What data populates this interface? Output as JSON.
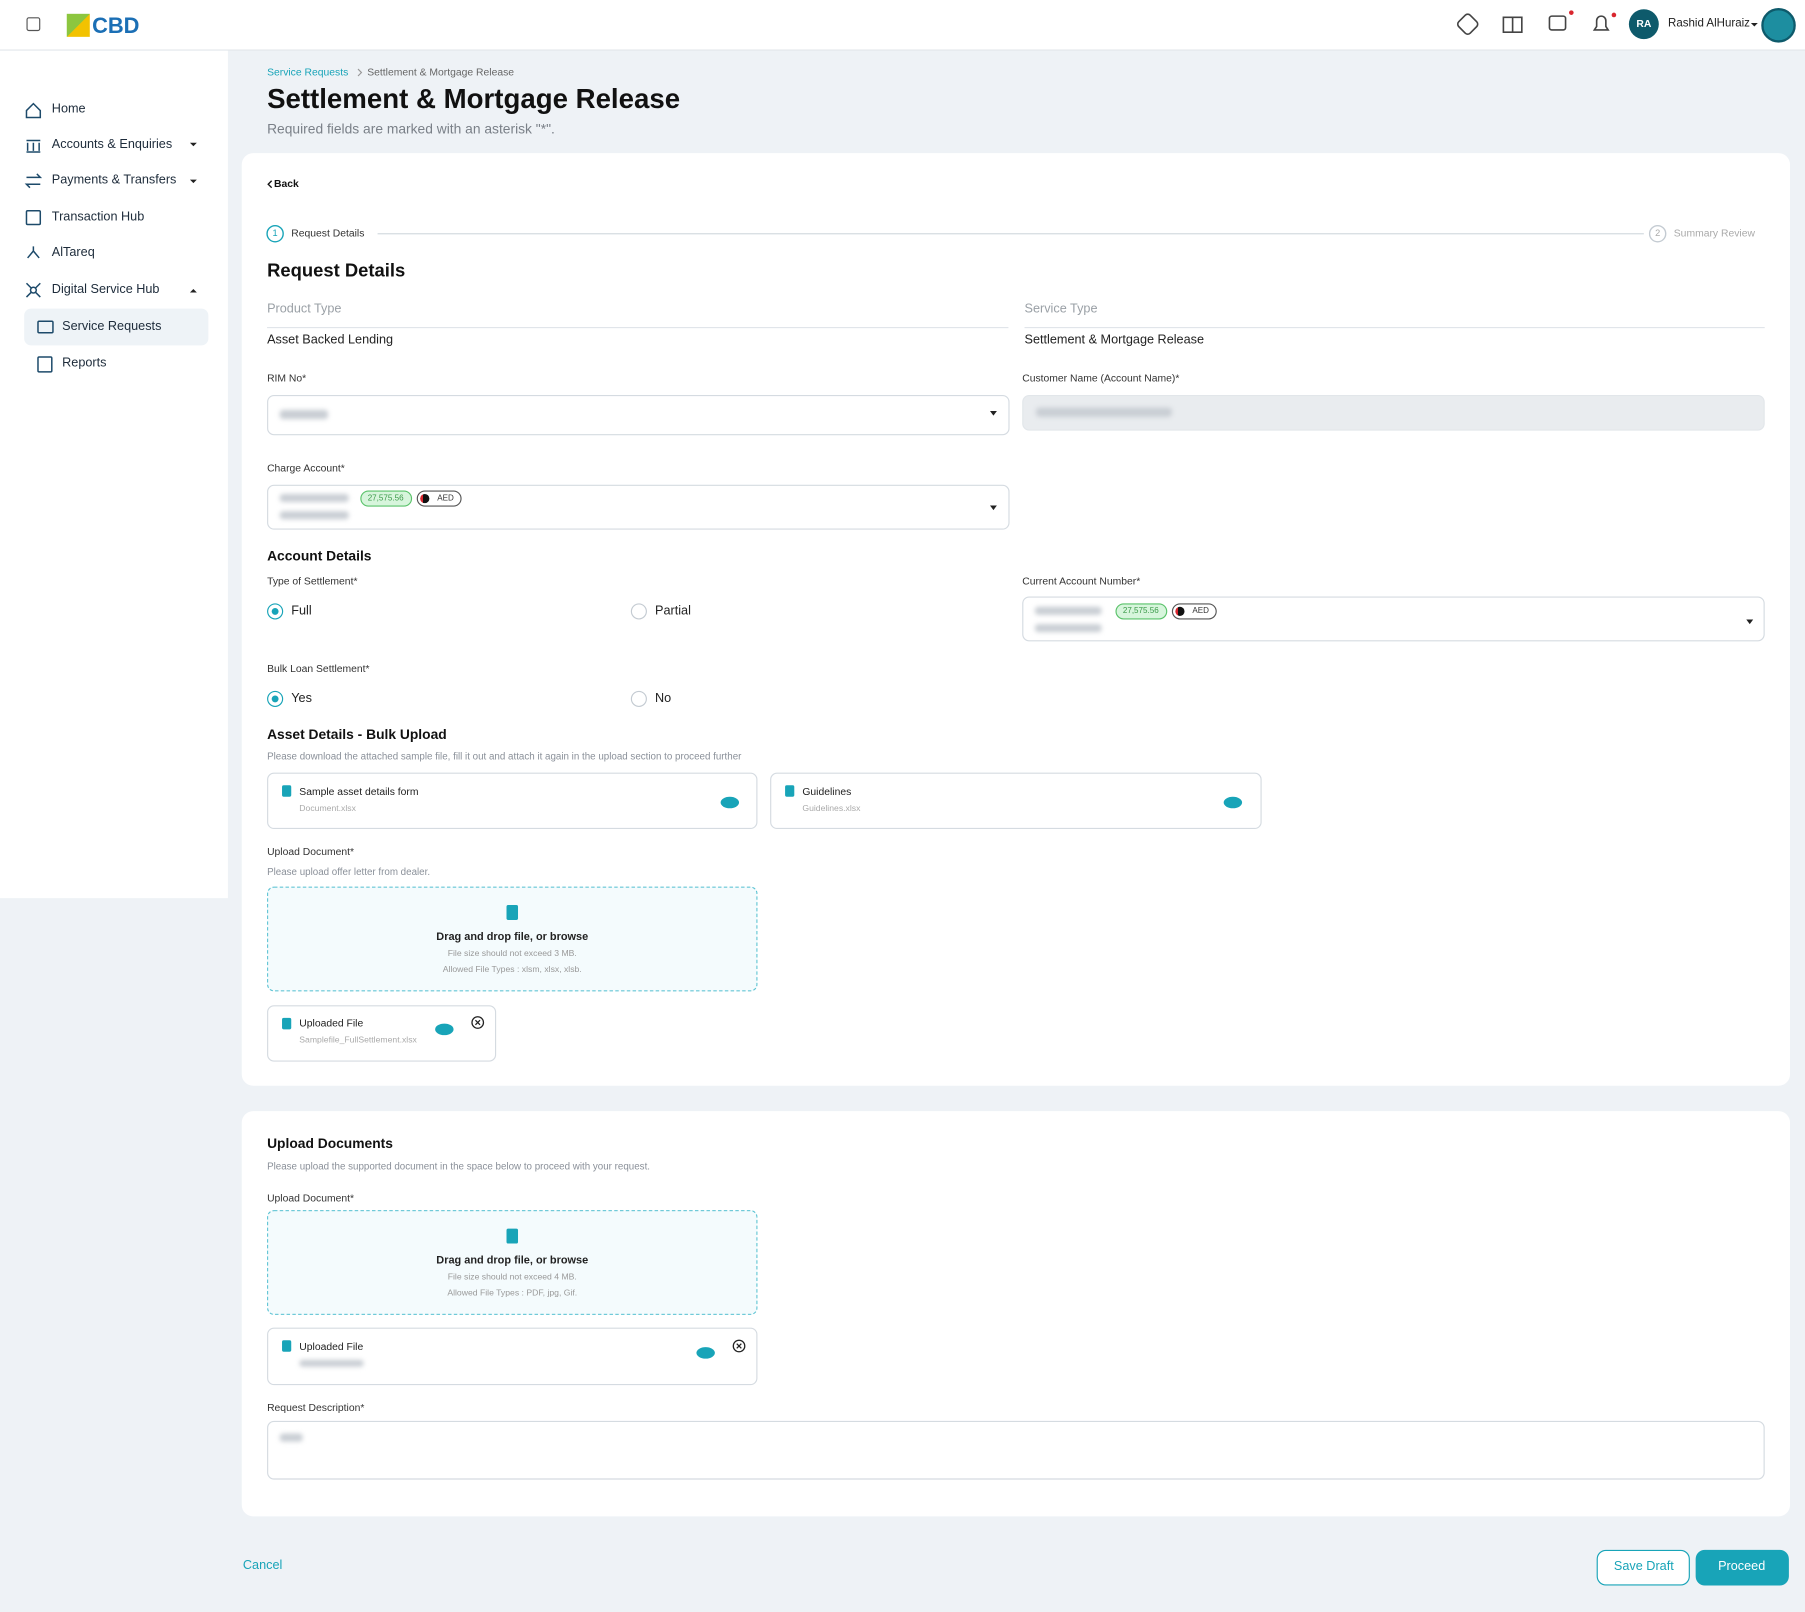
{
  "header": {
    "logo": "CBD",
    "user_initials": "RA",
    "user_name": "Rashid AlHuraiz"
  },
  "sidebar": {
    "items": [
      "Home",
      "Accounts & Enquiries",
      "Payments & Transfers",
      "Transaction Hub",
      "AlTareq",
      "Digital Service Hub"
    ],
    "sub_items": [
      "Service Requests",
      "Reports"
    ]
  },
  "breadcrumb": [
    "Service Requests",
    "Settlement & Mortgage Release"
  ],
  "page": {
    "title": "Settlement & Mortgage Release",
    "subtitle": "Required fields are marked with an asterisk \"*\"."
  },
  "stepper": {
    "back": "Back",
    "steps": [
      {
        "number": "1",
        "label": "Request Details"
      },
      {
        "number": "2",
        "label": "Summary Review"
      }
    ]
  },
  "request_details": {
    "heading": "Request Details",
    "product_type": {
      "label": "Product Type",
      "value": "Asset Backed Lending"
    },
    "service_type": {
      "label": "Service Type",
      "value": "Settlement & Mortgage Release"
    },
    "rim_no": {
      "label": "RIM No*"
    },
    "customer_name": {
      "label": "Customer Name (Account Name)*"
    },
    "charge_account": {
      "label": "Charge Account*",
      "balance": "27,575.56",
      "currency": "AED"
    }
  },
  "account_details": {
    "heading": "Account Details",
    "settlement_type": {
      "label": "Type of Settlement*",
      "options": [
        "Full",
        "Partial"
      ]
    },
    "current_account": {
      "label": "Current Account Number*",
      "balance": "27,575.56",
      "currency": "AED"
    },
    "bulk_loan": {
      "label": "Bulk Loan Settlement*",
      "options": [
        "Yes",
        "No"
      ]
    }
  },
  "asset_details": {
    "heading": "Asset Details - Bulk Upload",
    "description": "Please download the attached sample file, fill it out and attach it again in the upload section to proceed further",
    "files": [
      {
        "title": "Sample asset details form",
        "name": "Document.xlsx"
      },
      {
        "title": "Guidelines",
        "name": "Guidelines.xlsx"
      }
    ],
    "upload": {
      "label": "Upload Document*",
      "hint": "Please upload offer letter from dealer.",
      "drop_text": "Drag and drop file, or browse",
      "size_note": "File size should not exceed 3 MB.",
      "types_note": "Allowed File Types : xlsm, xlsx, xlsb."
    },
    "uploaded": {
      "title": "Uploaded File",
      "name": "Samplefile_FullSettlement.xlsx"
    }
  },
  "upload_documents": {
    "heading": "Upload Documents",
    "description": "Please upload the supported document in the space below to proceed with your request.",
    "upload": {
      "label": "Upload Document*",
      "drop_text": "Drag and drop file, or browse",
      "size_note": "File size should not exceed 4 MB.",
      "types_note": "Allowed File Types : PDF, jpg, Gif."
    },
    "uploaded": {
      "title": "Uploaded File"
    },
    "description_field": {
      "label": "Request Description*"
    }
  },
  "actions": {
    "cancel": "Cancel",
    "save_draft": "Save Draft",
    "proceed": "Proceed"
  }
}
